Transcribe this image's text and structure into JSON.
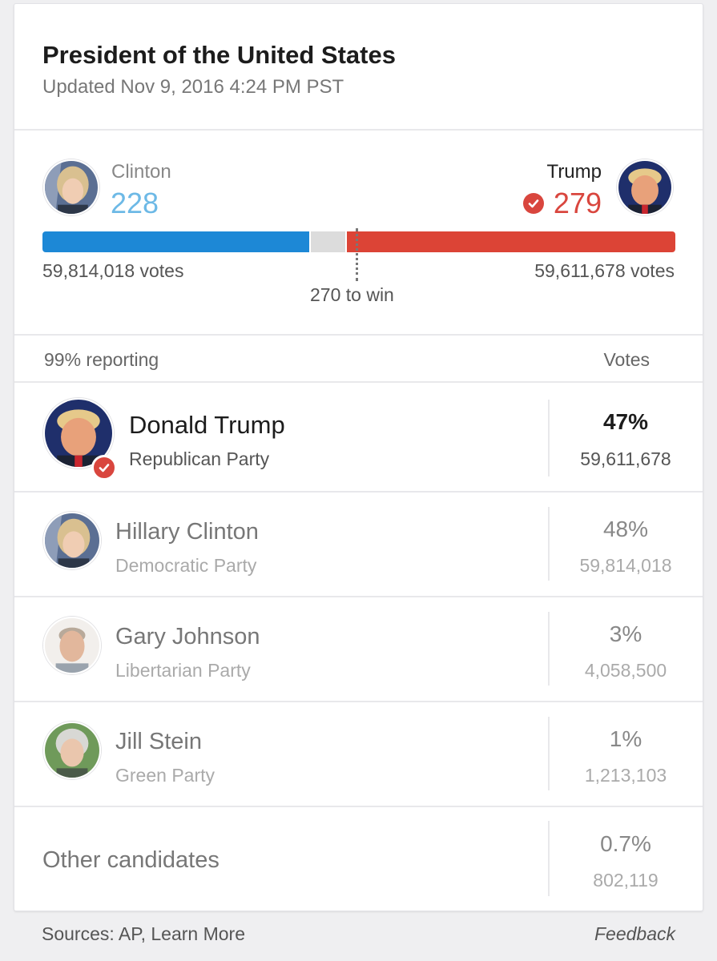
{
  "header": {
    "title": "President of the United States",
    "updated": "Updated Nov 9, 2016 4:24 PM PST"
  },
  "summary": {
    "left": {
      "name": "Clinton",
      "electoral_votes": "228",
      "popular_votes": "59,814,018 votes",
      "color": "#6db9e6"
    },
    "right": {
      "name": "Trump",
      "electoral_votes": "279",
      "popular_votes": "59,611,678 votes",
      "color": "#d9463e"
    },
    "to_win": "270 to win",
    "bar": {
      "clinton_ev": 228,
      "trump_ev": 279,
      "total_ev": 538,
      "clinton_color": "#1d88d6",
      "trump_color": "#dc4436",
      "undecided_color": "#dcdcdc"
    }
  },
  "table": {
    "reporting": "99% reporting",
    "votes_header": "Votes",
    "rows": [
      {
        "name": "Donald Trump",
        "party": "Republican Party",
        "pct": "47%",
        "votes": "59,611,678",
        "winner": true,
        "avatar": "trump-photo"
      },
      {
        "name": "Hillary Clinton",
        "party": "Democratic Party",
        "pct": "48%",
        "votes": "59,814,018",
        "winner": false,
        "avatar": "clinton-photo"
      },
      {
        "name": "Gary Johnson",
        "party": "Libertarian Party",
        "pct": "3%",
        "votes": "4,058,500",
        "winner": false,
        "avatar": "johnson-photo"
      },
      {
        "name": "Jill Stein",
        "party": "Green Party",
        "pct": "1%",
        "votes": "1,213,103",
        "winner": false,
        "avatar": "stein-photo"
      },
      {
        "name": "Other candidates",
        "pct": "0.7%",
        "votes": "802,119"
      }
    ]
  },
  "footer": {
    "sources": "Sources: AP, Learn More",
    "feedback": "Feedback"
  }
}
